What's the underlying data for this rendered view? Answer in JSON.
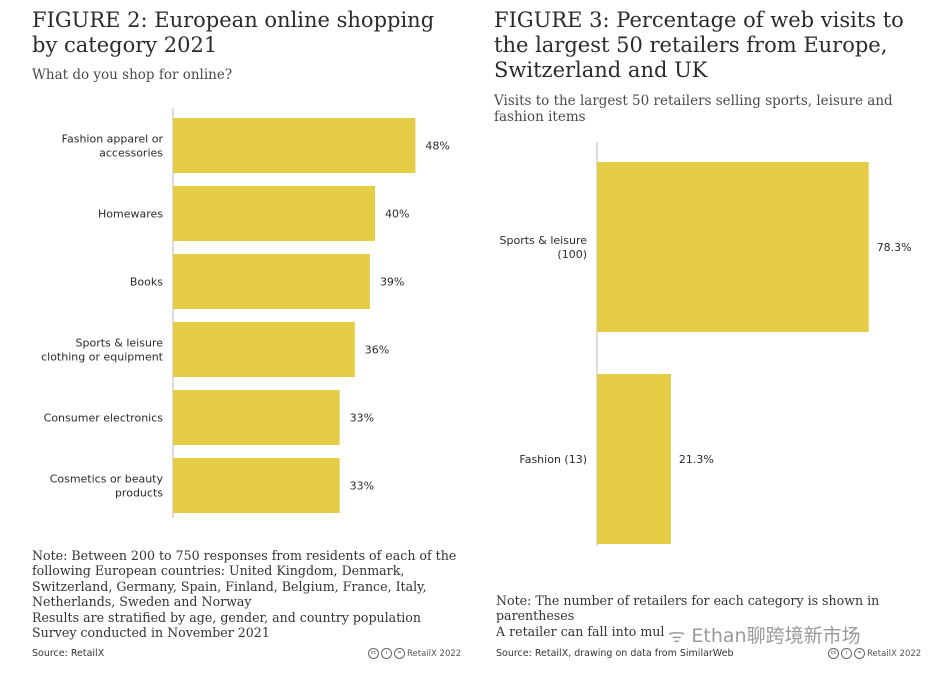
{
  "figure2": {
    "title": "FIGURE 2: European online shopping by category 2021",
    "subtitle": "What do you shop for online?",
    "note_lines": [
      "Note: Between 200 to 750 responses from residents of each of the",
      "following European countries: United Kingdom, Denmark,",
      "Switzerland, Germany, Spain, Finland, Belgium, France, Italy,",
      "Netherlands, Sweden and Norway",
      "Results are stratified by age, gender, and country population",
      "Survey conducted in November 2021"
    ],
    "source": "Source: RetailX",
    "credit": "RetailX 2022"
  },
  "figure3": {
    "title": "FIGURE 3: Percentage of web visits to the largest 50 retailers from Europe, Switzerland and UK",
    "subtitle": "Visits to the largest 50 retailers selling sports, leisure and fashion items",
    "note_lines": [
      "Note: The number of retailers for each category is shown in",
      "parentheses",
      "A retailer can fall into mul"
    ],
    "source": "Source: RetailX, drawing on data from SimilarWeb",
    "credit": "RetailX 2022"
  },
  "watermark": "Ethan聊跨境新市场",
  "colors": {
    "bar": "#e5cc45",
    "axis": "#bbbbbb",
    "text": "#2b2b2b"
  },
  "icons": [
    "cc-icon",
    "by-icon",
    "nd-icon",
    "wechat-icon"
  ],
  "chart_data": [
    {
      "type": "bar",
      "orientation": "horizontal",
      "categories": [
        [
          "Fashion apparel or",
          "accessories"
        ],
        [
          "Homewares"
        ],
        [
          "Books"
        ],
        [
          "Sports & leisure",
          "clothing or equipment"
        ],
        [
          "Consumer electronics"
        ],
        [
          "Cosmetics or beauty",
          "products"
        ]
      ],
      "values": [
        48,
        40,
        39,
        36,
        33,
        33
      ],
      "value_labels": [
        "48%",
        "40%",
        "39%",
        "36%",
        "33%",
        "33%"
      ],
      "xlim": [
        0,
        100
      ],
      "grid": false,
      "legend": "none"
    },
    {
      "type": "bar",
      "orientation": "horizontal",
      "categories": [
        [
          "Sports & leisure",
          "(100)"
        ],
        [
          "Fashion (13)"
        ]
      ],
      "values": [
        78.3,
        21.3
      ],
      "value_labels": [
        "78.3%",
        "21.3%"
      ],
      "xlim": [
        0,
        100
      ],
      "grid": false,
      "legend": "none"
    }
  ]
}
